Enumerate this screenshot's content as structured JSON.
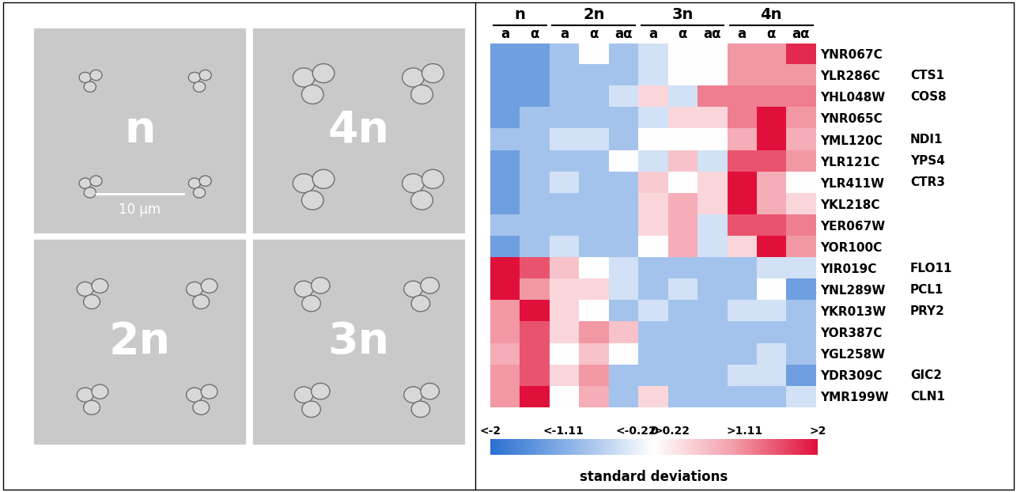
{
  "chart_data": [
    {
      "type": "image_panels",
      "panels": [
        {
          "label": "n"
        },
        {
          "label": "4n"
        },
        {
          "label": "2n"
        },
        {
          "label": "3n"
        }
      ],
      "scale_bar": "10 μm"
    },
    {
      "type": "heatmap",
      "groups": [
        {
          "label": "n",
          "columns": [
            "a",
            "α"
          ]
        },
        {
          "label": "2n",
          "columns": [
            "a",
            "α",
            "aα"
          ]
        },
        {
          "label": "3n",
          "columns": [
            "a",
            "α",
            "aα"
          ]
        },
        {
          "label": "4n",
          "columns": [
            "a",
            "α",
            "aα"
          ]
        }
      ],
      "rows": [
        "YNR067C",
        "YLR286C",
        "YHL048W",
        "YNR065C",
        "YML120C",
        "YLR121C",
        "YLR411W",
        "YKL218C",
        "YER067W",
        "YOR100C",
        "YIR019C",
        "YNL289W",
        "YKR013W",
        "YOR387C",
        "YGL258W",
        "YDR309C",
        "YMR199W"
      ],
      "row_names": [
        null,
        "CTS1",
        "COS8",
        null,
        "NDI1",
        "YPS4",
        "CTR3",
        null,
        null,
        null,
        "FLO11",
        "PCL1",
        "PRY2",
        null,
        null,
        "GIC2",
        "CLN1"
      ],
      "cells": [
        [
          -1.3,
          -1.3,
          -0.8,
          0,
          -0.8,
          -0.4,
          0,
          0,
          1.0,
          1.0,
          1.8
        ],
        [
          -1.3,
          -1.3,
          -0.8,
          -0.8,
          -0.8,
          -0.4,
          0,
          0,
          1.0,
          1.0,
          1.0
        ],
        [
          -1.3,
          -1.3,
          -0.8,
          -0.8,
          -0.4,
          0.4,
          -0.4,
          1.2,
          1.2,
          1.2,
          1.2
        ],
        [
          -1.3,
          -0.8,
          -0.8,
          -0.8,
          -0.8,
          -0.4,
          0.4,
          0.4,
          1.2,
          2.0,
          1.0
        ],
        [
          -0.8,
          -0.8,
          -0.4,
          -0.4,
          -0.8,
          0,
          0,
          0,
          0.8,
          2.0,
          0.8
        ],
        [
          -1.3,
          -0.8,
          -0.8,
          -0.8,
          0,
          -0.4,
          0.6,
          -0.4,
          1.5,
          1.5,
          1.0
        ],
        [
          -1.3,
          -0.8,
          -0.4,
          -0.8,
          -0.8,
          0.5,
          0,
          0.4,
          2.0,
          0.8,
          0
        ],
        [
          -1.3,
          -0.8,
          -0.8,
          -0.8,
          -0.8,
          0.4,
          0.8,
          0.4,
          2.0,
          0.8,
          0.4
        ],
        [
          -0.8,
          -0.8,
          -0.8,
          -0.8,
          -0.8,
          0.4,
          0.8,
          -0.4,
          1.5,
          1.5,
          1.2
        ],
        [
          -1.3,
          -0.8,
          -0.4,
          -0.8,
          -0.8,
          0,
          0.8,
          -0.4,
          0.4,
          2.0,
          1.0
        ],
        [
          2.0,
          1.5,
          0.6,
          0,
          -0.4,
          -0.8,
          -0.8,
          -0.8,
          -0.8,
          -0.4,
          -0.4
        ],
        [
          2.0,
          1.0,
          0.4,
          0.4,
          -0.4,
          -0.8,
          -0.4,
          -0.8,
          -0.8,
          0,
          -1.3
        ],
        [
          1.0,
          2.0,
          0.4,
          0,
          -0.8,
          -0.4,
          -0.8,
          -0.8,
          -0.4,
          -0.4,
          -0.8
        ],
        [
          1.0,
          1.5,
          0.4,
          1.0,
          0.6,
          -0.8,
          -0.8,
          -0.8,
          -0.8,
          -0.8,
          -0.8
        ],
        [
          0.8,
          1.5,
          0,
          0.6,
          0,
          -0.8,
          -0.8,
          -0.8,
          -0.8,
          -0.4,
          -0.8
        ],
        [
          1.0,
          1.5,
          0.4,
          1.0,
          -0.8,
          -0.8,
          -0.8,
          -0.8,
          -0.4,
          -0.4,
          -1.3
        ],
        [
          1.0,
          2.0,
          0,
          0.8,
          -0.8,
          0.4,
          -0.8,
          -0.8,
          -0.8,
          -0.8,
          -0.4
        ]
      ],
      "colorbar_range": [
        -2,
        2
      ],
      "colorbar_ticks": [
        {
          "value": -2,
          "label": "<-2"
        },
        {
          "value": -1.11,
          "label": "<-1.11"
        },
        {
          "value": -0.22,
          "label": "<-0.22"
        },
        0,
        {
          "value": 0.22,
          "label": ">0.22"
        },
        {
          "value": 1.11,
          "label": ">1.11"
        },
        {
          "value": 2,
          "label": ">2"
        }
      ],
      "colorbar_label": "standard deviations"
    }
  ]
}
